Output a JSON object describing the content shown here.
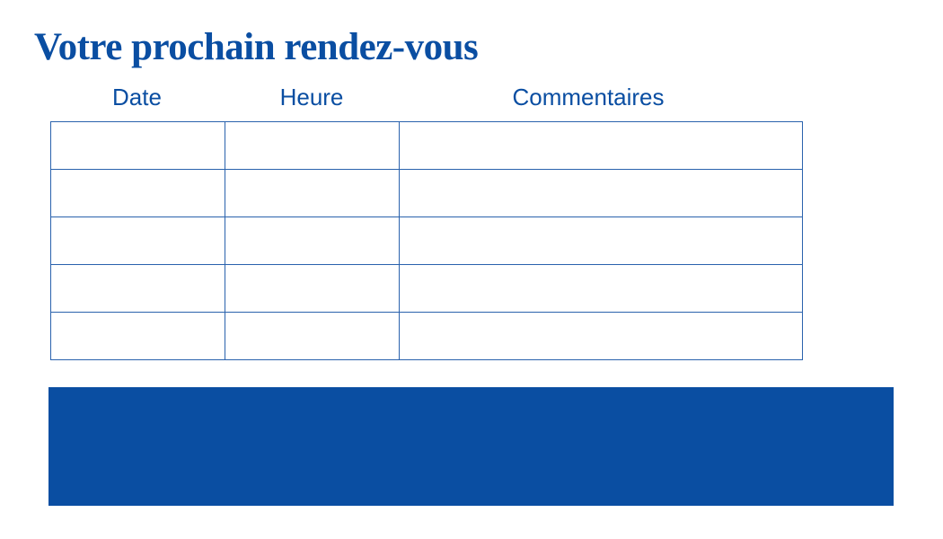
{
  "title": "Votre prochain rendez-vous",
  "columns": [
    "Date",
    "Heure",
    "Commentaires"
  ],
  "rows": [
    [
      "",
      "",
      ""
    ],
    [
      "",
      "",
      ""
    ],
    [
      "",
      "",
      ""
    ],
    [
      "",
      "",
      ""
    ],
    [
      "",
      "",
      ""
    ]
  ],
  "colors": {
    "brand_blue": "#0a4ea2"
  }
}
